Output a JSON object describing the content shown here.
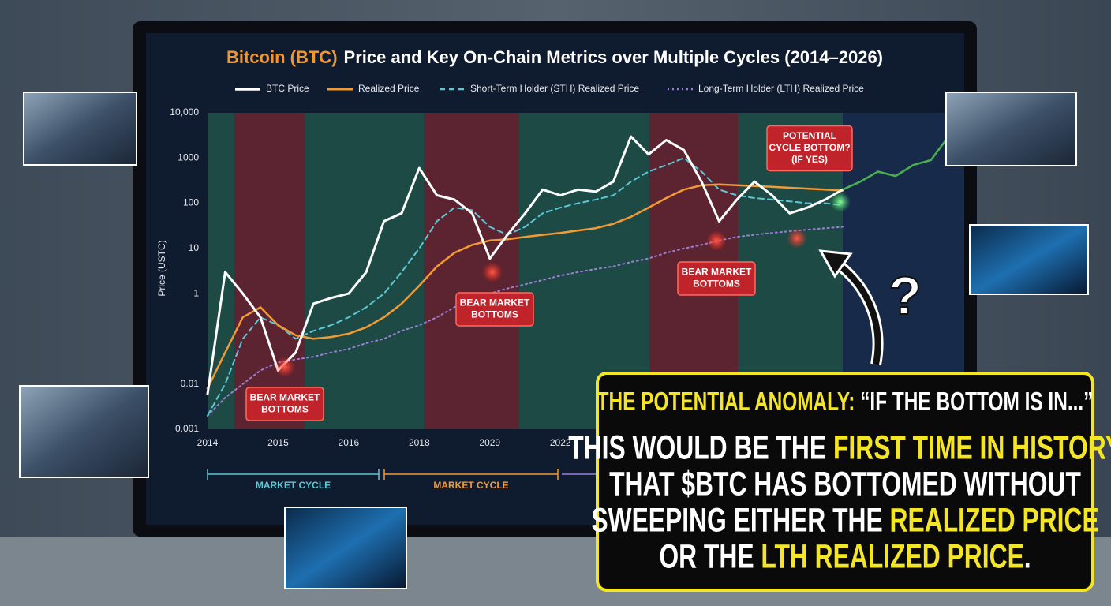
{
  "chart_data": {
    "type": "line",
    "title": [
      "Bitcoin (BTC)",
      "Price and Key On-Chain Metrics over Multiple Cycles (2014–2026)"
    ],
    "title_colors": [
      "#f2962f",
      "#ffffff"
    ],
    "ylabel": "Price (USTC)",
    "log_y": true,
    "grid": false,
    "ylim": [
      0.001,
      10000
    ],
    "yticks": [
      0.001,
      0.01,
      1,
      10,
      100,
      1000,
      {
        "value": 10000,
        "label": "10,000"
      }
    ],
    "categories": [
      "2014",
      null,
      null,
      null,
      "2015",
      null,
      null,
      null,
      "2016",
      null,
      null,
      null,
      "2018",
      null,
      null,
      null,
      "2029",
      null,
      null,
      null,
      "2022",
      null,
      null,
      null,
      null,
      null,
      null,
      null,
      null,
      null,
      null,
      null,
      null,
      null,
      null,
      null,
      null,
      null,
      null,
      null,
      null,
      null,
      null
    ],
    "series": [
      {
        "name": "BTC Price",
        "color": "#ffffff",
        "dash": "solid",
        "width": 3,
        "values": [
          0.006,
          3,
          1,
          0.3,
          0.02,
          0.05,
          0.6,
          0.8,
          1,
          3,
          40,
          60,
          600,
          150,
          120,
          60,
          6,
          20,
          60,
          200,
          150,
          200,
          180,
          300,
          3000,
          1200,
          2500,
          1500,
          300,
          40,
          120,
          300,
          150,
          60,
          80,
          120,
          200,
          null,
          null,
          null,
          null,
          null,
          null
        ]
      },
      {
        "name": "Realized Price",
        "color": "#f39a35",
        "dash": "solid",
        "width": 2.5,
        "values": [
          0.008,
          0.05,
          0.3,
          0.5,
          0.2,
          0.12,
          0.1,
          0.11,
          0.13,
          0.18,
          0.3,
          0.6,
          1.5,
          4,
          8,
          12,
          15,
          16,
          18,
          20,
          22,
          25,
          28,
          35,
          50,
          80,
          130,
          200,
          250,
          260,
          250,
          240,
          230,
          220,
          210,
          200,
          190,
          null,
          null,
          null,
          null,
          null,
          null
        ]
      },
      {
        "name": "Short-Term Holder (STH) Realized Price",
        "color": "#5cc8d6",
        "dash": "dashed",
        "width": 2,
        "values": [
          0.002,
          0.01,
          0.1,
          0.3,
          0.2,
          0.1,
          0.15,
          0.2,
          0.3,
          0.5,
          1,
          3,
          10,
          40,
          80,
          70,
          30,
          20,
          30,
          60,
          80,
          100,
          120,
          150,
          300,
          500,
          700,
          1000,
          500,
          200,
          150,
          130,
          120,
          110,
          100,
          100,
          90,
          null,
          null,
          null,
          null,
          null,
          null
        ]
      },
      {
        "name": "Long-Term Holder (LTH) Realized Price",
        "color": "#9b7fd6",
        "dash": "dotted",
        "width": 2,
        "values": [
          0.002,
          0.005,
          0.01,
          0.02,
          0.03,
          0.035,
          0.04,
          0.05,
          0.06,
          0.08,
          0.1,
          0.15,
          0.2,
          0.3,
          0.5,
          0.8,
          1,
          1.3,
          1.6,
          2,
          2.5,
          3,
          3.5,
          4,
          5,
          6,
          8,
          10,
          12,
          15,
          18,
          20,
          22,
          24,
          26,
          28,
          30,
          null,
          null,
          null,
          null,
          null,
          null
        ]
      }
    ],
    "projection": {
      "color": "#4caf50",
      "values": [
        null,
        null,
        null,
        null,
        null,
        null,
        null,
        null,
        null,
        null,
        null,
        null,
        null,
        null,
        null,
        null,
        null,
        null,
        null,
        null,
        null,
        null,
        null,
        null,
        null,
        null,
        null,
        null,
        null,
        null,
        null,
        null,
        null,
        null,
        null,
        null,
        200,
        300,
        500,
        400,
        700,
        900,
        3000
      ]
    },
    "annotations": [
      {
        "lines": [
          "BEAR MARKET",
          "BOTTOMS"
        ]
      },
      {
        "lines": [
          "BEAR MARKET",
          "BOTTOMS"
        ]
      },
      {
        "lines": [
          "BEAR MARKET",
          "BOTTOMS"
        ]
      },
      {
        "lines": [
          "POTENTIAL",
          "CYCLE BOTTOM?",
          "(IF YES)"
        ]
      }
    ],
    "question_mark": "?",
    "cycles": [
      {
        "label": "MARKET CYCLE",
        "color": "#5cc8d6"
      },
      {
        "label": "MARKET CYCLE",
        "color": "#f39a35"
      }
    ]
  },
  "callout": {
    "heading": [
      {
        "text": "THE POTENTIAL ANOMALY:",
        "highlight": true
      },
      {
        "text": " “IF THE BOTTOM IS IN...”",
        "highlight": false
      }
    ],
    "lines": [
      [
        {
          "text": "THIS WOULD BE THE ",
          "highlight": false
        },
        {
          "text": "FIRST TIME IN HISTORY",
          "highlight": true
        }
      ],
      [
        {
          "text": "THAT $BTC HAS BOTTOMED WITHOUT",
          "highlight": false
        }
      ],
      [
        {
          "text": "SWEEPING EITHER THE ",
          "highlight": false
        },
        {
          "text": "REALIZED PRICE",
          "highlight": true
        }
      ],
      [
        {
          "text": "OR THE ",
          "highlight": false
        },
        {
          "text": "LTH REALIZED PRICE",
          "highlight": true
        },
        {
          "text": ".",
          "highlight": false
        }
      ]
    ]
  }
}
